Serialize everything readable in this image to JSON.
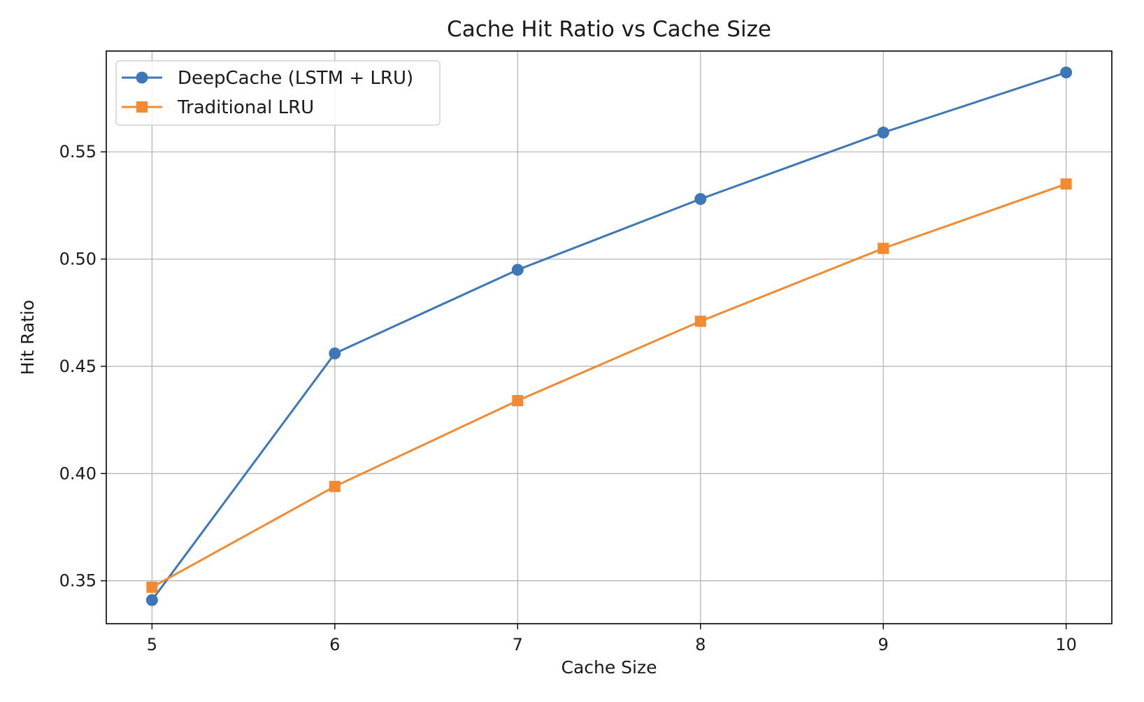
{
  "chart_data": {
    "type": "line",
    "title": "Cache Hit Ratio vs Cache Size",
    "xlabel": "Cache Size",
    "ylabel": "Hit Ratio",
    "x": [
      5,
      6,
      7,
      8,
      9,
      10
    ],
    "x_ticks": [
      "5",
      "6",
      "7",
      "8",
      "9",
      "10"
    ],
    "y_ticks": [
      "0.35",
      "0.40",
      "0.45",
      "0.50",
      "0.55"
    ],
    "y_tick_values": [
      0.35,
      0.4,
      0.45,
      0.5,
      0.55
    ],
    "xlim": [
      4.75,
      10.25
    ],
    "ylim": [
      0.33,
      0.597
    ],
    "grid": true,
    "legend_position": "top-left",
    "series": [
      {
        "name": "DeepCache (LSTM + LRU)",
        "color": "#3d77b5",
        "marker": "circle",
        "values": [
          0.341,
          0.456,
          0.495,
          0.528,
          0.559,
          0.587
        ]
      },
      {
        "name": "Traditional LRU",
        "color": "#f28a32",
        "marker": "square",
        "values": [
          0.347,
          0.394,
          0.434,
          0.471,
          0.505,
          0.535
        ]
      }
    ]
  }
}
